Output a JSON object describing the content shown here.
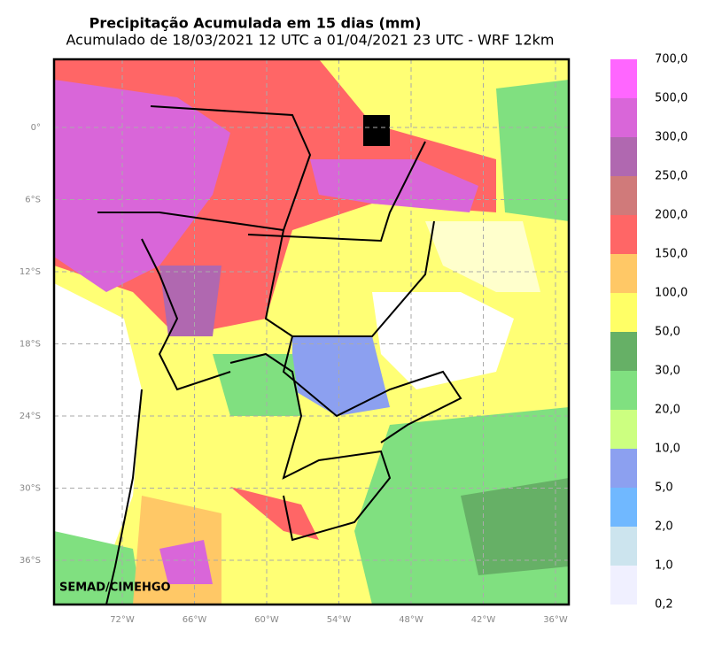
{
  "title": "Precipitação Acumulada em 15 dias (mm)",
  "subtitle": "Acumulado de 18/03/2021 12 UTC a 01/04/2021 23 UTC - WRF 12km",
  "map": {
    "lat_labels": [
      "0°",
      "6°S",
      "12°S",
      "18°S",
      "24°S",
      "30°S",
      "36°S"
    ],
    "lon_labels": [
      "72°W",
      "66°W",
      "60°W",
      "54°W",
      "48°W",
      "42°W",
      "36°W"
    ],
    "credit": "SEMAD/CIMEHGO"
  },
  "legend": {
    "labels": [
      "700,0",
      "500,0",
      "300,0",
      "250,0",
      "200,0",
      "150,0",
      "100,0",
      "50,0",
      "30,0",
      "20,0",
      "10,0",
      "5,0",
      "2,0",
      "1,0",
      "0,2"
    ],
    "colors": [
      "#ff66ff",
      "#d966d9",
      "#b068b0",
      "#d07a7a",
      "#ff6666",
      "#ffc866",
      "#ffff66",
      "#66b066",
      "#80e080",
      "#ccff80",
      "#8ca0f0",
      "#70b8ff",
      "#cce4ee",
      "#f0f0ff"
    ]
  }
}
